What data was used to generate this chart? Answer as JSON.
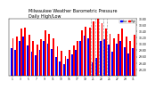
{
  "title": "Milwaukee Weather Barometric Pressure\nDaily High/Low",
  "title_fontsize": 3.5,
  "bar_width": 0.4,
  "background_color": "#ffffff",
  "high_color": "#ff0000",
  "low_color": "#0000ff",
  "dashed_line_indices": [
    20,
    21,
    22,
    23,
    24
  ],
  "legend_labels": [
    "Low",
    "High"
  ],
  "ylim": [
    29.0,
    30.8
  ],
  "yticks": [
    29.2,
    29.4,
    29.6,
    29.8,
    30.0,
    30.2,
    30.4,
    30.6,
    30.8
  ],
  "days": [
    1,
    2,
    3,
    4,
    5,
    6,
    7,
    8,
    9,
    10,
    11,
    12,
    13,
    14,
    15,
    16,
    17,
    18,
    19,
    20,
    21,
    22,
    23,
    24,
    25,
    26,
    27,
    28,
    29,
    30,
    31
  ],
  "highs": [
    30.18,
    30.22,
    30.48,
    30.52,
    30.28,
    30.08,
    29.98,
    30.15,
    30.42,
    30.32,
    30.18,
    29.92,
    29.78,
    29.62,
    29.8,
    29.95,
    30.08,
    30.42,
    30.55,
    30.5,
    30.72,
    30.78,
    30.65,
    30.48,
    30.32,
    30.18,
    30.32,
    30.48,
    30.22,
    30.08,
    30.28
  ],
  "lows": [
    29.88,
    29.8,
    30.08,
    30.22,
    29.95,
    29.75,
    29.65,
    29.82,
    30.08,
    30.02,
    29.85,
    29.58,
    29.45,
    29.35,
    29.52,
    29.68,
    29.82,
    30.1,
    30.25,
    30.18,
    29.42,
    29.55,
    30.1,
    30.15,
    29.98,
    29.75,
    30.0,
    30.1,
    29.9,
    29.7,
    29.88
  ]
}
